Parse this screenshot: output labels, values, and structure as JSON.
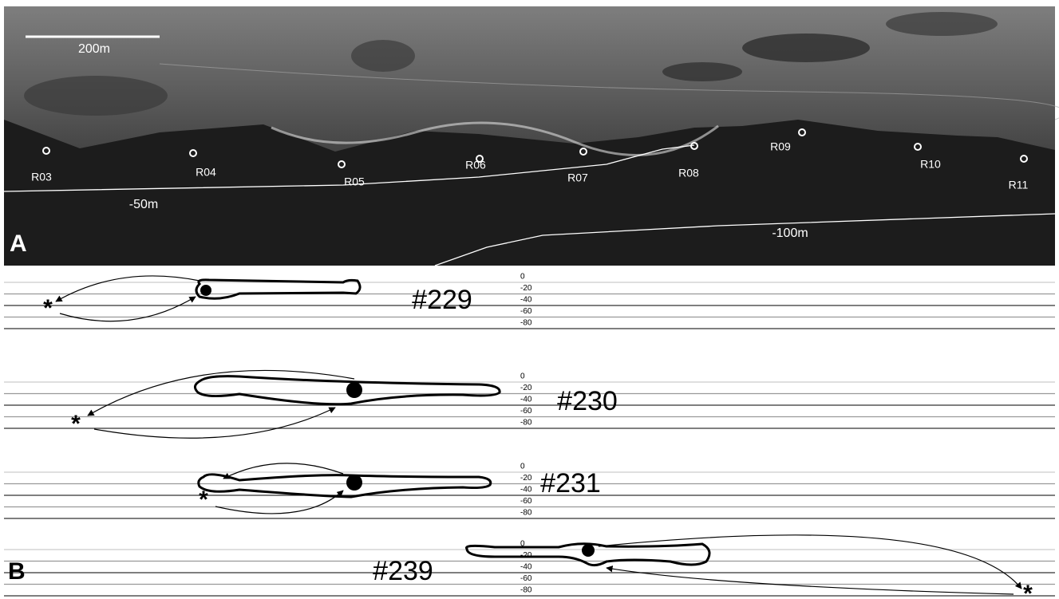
{
  "panel_a": {
    "label": "A",
    "scale_bar": "200m",
    "receivers": [
      "R03",
      "R04",
      "R05",
      "R06",
      "R07",
      "R08",
      "R09",
      "R10",
      "R11"
    ],
    "contours": [
      "-50m",
      "-100m"
    ]
  },
  "panel_b": {
    "label": "B",
    "depth_ticks": [
      0,
      -20,
      -40,
      -60,
      -80
    ],
    "tracks": [
      "#229",
      "#230",
      "#231",
      "#239"
    ]
  }
}
